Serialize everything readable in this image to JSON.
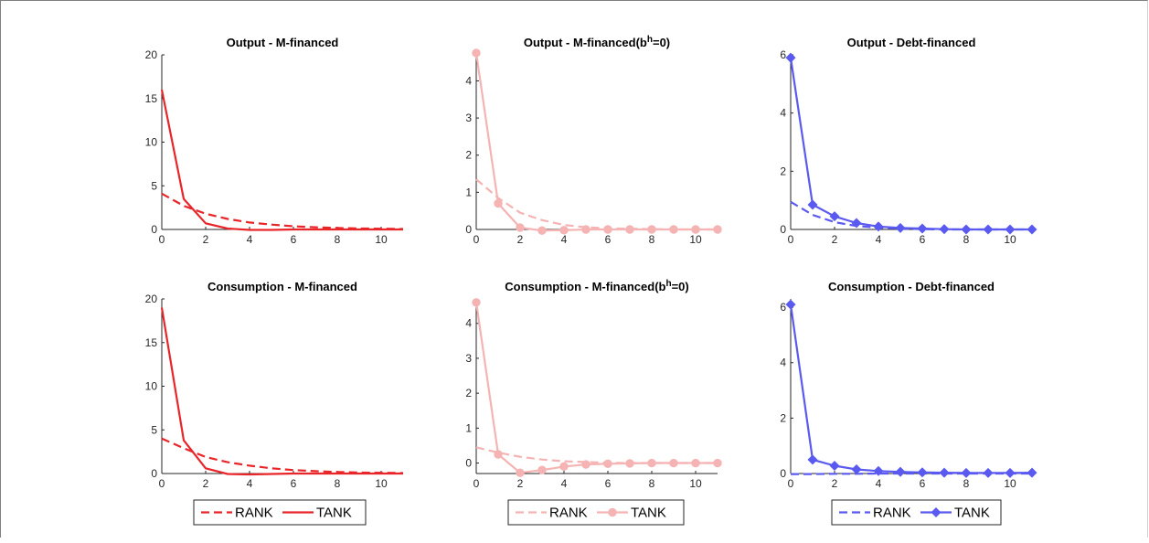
{
  "chart_data": [
    {
      "type": "line",
      "title": "Output - M-financed",
      "title_sup": "",
      "title_tail": "",
      "color": "#e8262a",
      "marker": "none",
      "xlim": [
        0,
        11
      ],
      "ylim": [
        0,
        20
      ],
      "xticks": [
        0,
        2,
        4,
        6,
        8,
        10
      ],
      "yticks": [
        0,
        5,
        10,
        15,
        20
      ],
      "series": [
        {
          "name": "RANK",
          "style": "dashed",
          "x": [
            0,
            1,
            2,
            3,
            4,
            5,
            6,
            7,
            8,
            9,
            10,
            11
          ],
          "y": [
            4.1,
            2.7,
            1.8,
            1.2,
            0.8,
            0.55,
            0.37,
            0.25,
            0.17,
            0.11,
            0.08,
            0.05
          ]
        },
        {
          "name": "TANK",
          "style": "solid",
          "x": [
            0,
            1,
            2,
            3,
            4,
            5,
            6,
            7,
            8,
            9,
            10,
            11
          ],
          "y": [
            16.0,
            3.5,
            0.7,
            0.1,
            -0.05,
            -0.05,
            0.0,
            0.0,
            0.0,
            0.0,
            0.0,
            0.0
          ]
        }
      ]
    },
    {
      "type": "line",
      "title": "Output - M-financed(b",
      "title_sup": "h",
      "title_tail": "=0)",
      "color": "#f5b3b3",
      "marker": "circle",
      "xlim": [
        0,
        11
      ],
      "ylim": [
        0,
        4.7
      ],
      "xticks": [
        0,
        2,
        4,
        6,
        8,
        10
      ],
      "yticks": [
        0,
        1,
        2,
        3,
        4
      ],
      "series": [
        {
          "name": "RANK",
          "style": "dashed",
          "x": [
            0,
            1,
            2,
            3,
            4,
            5,
            6,
            7,
            8,
            9,
            10,
            11
          ],
          "y": [
            1.35,
            0.85,
            0.45,
            0.25,
            0.12,
            0.06,
            0.03,
            0.02,
            0.01,
            0.0,
            0.0,
            0.0
          ]
        },
        {
          "name": "TANK",
          "style": "solid",
          "x": [
            0,
            1,
            2,
            3,
            4,
            5,
            6,
            7,
            8,
            9,
            10,
            11
          ],
          "y": [
            4.75,
            0.7,
            0.05,
            -0.03,
            -0.02,
            0.0,
            0.0,
            0.0,
            0.0,
            0.0,
            0.0,
            0.0
          ]
        }
      ]
    },
    {
      "type": "line",
      "title": "Output - Debt-financed",
      "title_sup": "",
      "title_tail": "",
      "color": "#5a5af0",
      "marker": "diamond",
      "xlim": [
        0,
        11
      ],
      "ylim": [
        0,
        6
      ],
      "xticks": [
        0,
        2,
        4,
        6,
        8,
        10
      ],
      "yticks": [
        0,
        2,
        4,
        6
      ],
      "series": [
        {
          "name": "RANK",
          "style": "dashed",
          "x": [
            0,
            1,
            2,
            3,
            4,
            5,
            6,
            7,
            8,
            9,
            10,
            11
          ],
          "y": [
            0.95,
            0.5,
            0.25,
            0.12,
            0.06,
            0.03,
            0.01,
            0.0,
            0.0,
            0.0,
            0.0,
            0.0
          ]
        },
        {
          "name": "TANK",
          "style": "solid",
          "x": [
            0,
            1,
            2,
            3,
            4,
            5,
            6,
            7,
            8,
            9,
            10,
            11
          ],
          "y": [
            5.9,
            0.85,
            0.45,
            0.22,
            0.1,
            0.05,
            0.03,
            0.01,
            0.0,
            0.0,
            0.0,
            0.0
          ]
        }
      ]
    },
    {
      "type": "line",
      "title": "Consumption - M-financed",
      "title_sup": "",
      "title_tail": "",
      "color": "#e8262a",
      "marker": "none",
      "xlim": [
        0,
        11
      ],
      "ylim": [
        0,
        20
      ],
      "xticks": [
        0,
        2,
        4,
        6,
        8,
        10
      ],
      "yticks": [
        0,
        5,
        10,
        15,
        20
      ],
      "series": [
        {
          "name": "RANK",
          "style": "dashed",
          "x": [
            0,
            1,
            2,
            3,
            4,
            5,
            6,
            7,
            8,
            9,
            10,
            11
          ],
          "y": [
            4.0,
            2.9,
            1.9,
            1.3,
            0.9,
            0.6,
            0.4,
            0.27,
            0.18,
            0.12,
            0.08,
            0.05
          ]
        },
        {
          "name": "TANK",
          "style": "solid",
          "x": [
            0,
            1,
            2,
            3,
            4,
            5,
            6,
            7,
            8,
            9,
            10,
            11
          ],
          "y": [
            19.0,
            3.8,
            0.6,
            -0.05,
            -0.1,
            -0.05,
            0.0,
            0.0,
            0.0,
            0.0,
            0.0,
            0.0
          ]
        }
      ]
    },
    {
      "type": "line",
      "title": "Consumption - M-financed(b",
      "title_sup": "h",
      "title_tail": "=0)",
      "color": "#f5b3b3",
      "marker": "circle",
      "xlim": [
        0,
        11
      ],
      "ylim": [
        -0.3,
        4.7
      ],
      "xticks": [
        0,
        2,
        4,
        6,
        8,
        10
      ],
      "yticks": [
        0,
        1,
        2,
        3,
        4
      ],
      "series": [
        {
          "name": "RANK",
          "style": "dashed",
          "x": [
            0,
            1,
            2,
            3,
            4,
            5,
            6,
            7,
            8,
            9,
            10,
            11
          ],
          "y": [
            0.45,
            0.3,
            0.18,
            0.1,
            0.05,
            0.03,
            0.01,
            0.0,
            0.0,
            0.0,
            0.0,
            0.0
          ]
        },
        {
          "name": "TANK",
          "style": "solid",
          "x": [
            0,
            1,
            2,
            3,
            4,
            5,
            6,
            7,
            8,
            9,
            10,
            11
          ],
          "y": [
            4.6,
            0.25,
            -0.28,
            -0.2,
            -0.1,
            -0.04,
            -0.02,
            -0.01,
            0.0,
            0.0,
            0.0,
            0.0
          ]
        }
      ]
    },
    {
      "type": "line",
      "title": "Consumption - Debt-financed",
      "title_sup": "",
      "title_tail": "",
      "color": "#5a5af0",
      "marker": "diamond",
      "xlim": [
        0,
        11
      ],
      "ylim": [
        0,
        6.3
      ],
      "xticks": [
        0,
        2,
        4,
        6,
        8,
        10
      ],
      "yticks": [
        0,
        2,
        4,
        6
      ],
      "series": [
        {
          "name": "RANK",
          "style": "dashed",
          "x": [
            0,
            1,
            2,
            3,
            4,
            5,
            6,
            7,
            8,
            9,
            10,
            11
          ],
          "y": [
            -0.02,
            -0.02,
            -0.01,
            -0.01,
            0.0,
            0.0,
            0.0,
            0.0,
            0.0,
            0.0,
            0.0,
            0.0
          ]
        },
        {
          "name": "TANK",
          "style": "solid",
          "x": [
            0,
            1,
            2,
            3,
            4,
            5,
            6,
            7,
            8,
            9,
            10,
            11
          ],
          "y": [
            6.1,
            0.5,
            0.28,
            0.15,
            0.09,
            0.06,
            0.04,
            0.03,
            0.02,
            0.02,
            0.02,
            0.03
          ]
        }
      ]
    }
  ],
  "legends": [
    {
      "color": "#e8262a",
      "marker": "none",
      "items": [
        {
          "label": "RANK",
          "style": "dashed"
        },
        {
          "label": "TANK",
          "style": "solid"
        }
      ]
    },
    {
      "color": "#f5b3b3",
      "marker": "circle",
      "items": [
        {
          "label": "RANK",
          "style": "dashed"
        },
        {
          "label": "TANK",
          "style": "solid"
        }
      ]
    },
    {
      "color": "#5a5af0",
      "marker": "diamond",
      "items": [
        {
          "label": "RANK",
          "style": "dashed"
        },
        {
          "label": "TANK",
          "style": "solid"
        }
      ]
    }
  ]
}
